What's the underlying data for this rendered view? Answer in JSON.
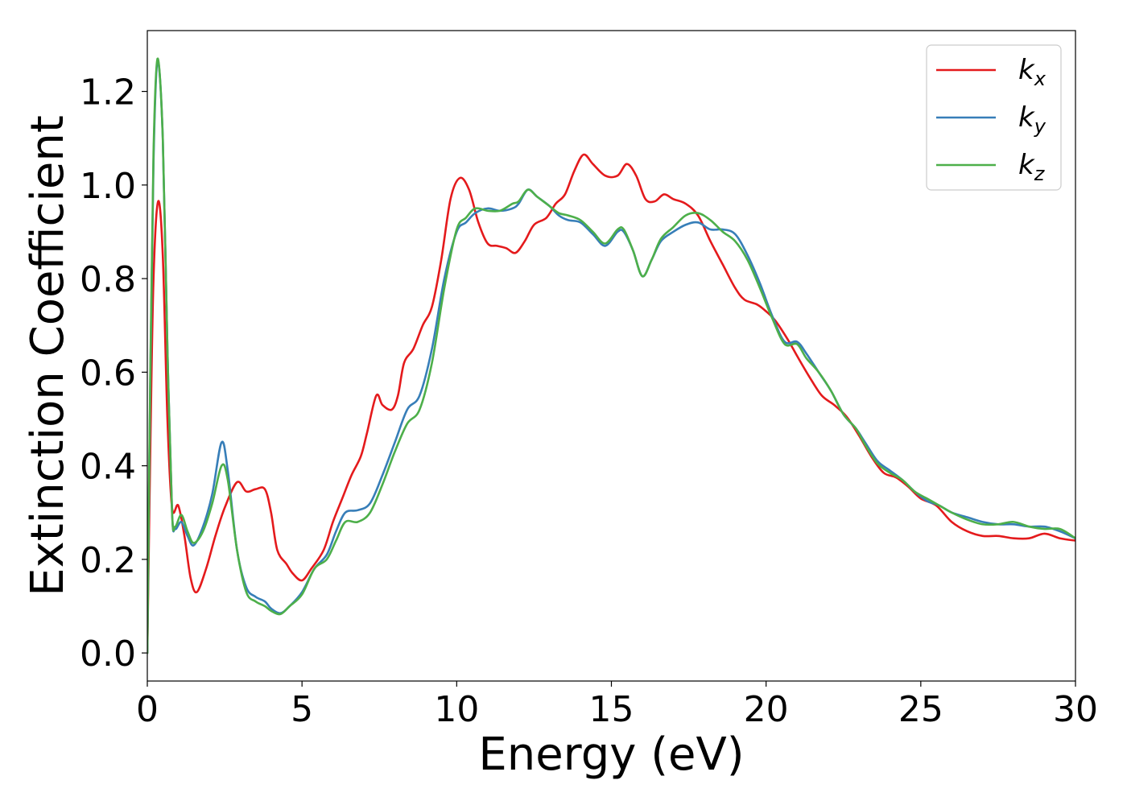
{
  "chart_data": {
    "type": "line",
    "title": "",
    "xlabel": "Energy (eV)",
    "ylabel": "Extinction Coefficient",
    "xlim": [
      0,
      30
    ],
    "ylim": [
      -0.06,
      1.33
    ],
    "xticks": [
      0,
      5,
      10,
      15,
      20,
      25,
      30
    ],
    "yticks": [
      0.0,
      0.2,
      0.4,
      0.6,
      0.8,
      1.0,
      1.2
    ],
    "grid": false,
    "legend_position": "top-right",
    "series": [
      {
        "name": "k",
        "subscript": "x",
        "color": "#e41a1c",
        "points": [
          [
            0,
            0.0
          ],
          [
            0.1,
            0.45
          ],
          [
            0.2,
            0.8
          ],
          [
            0.35,
            0.965
          ],
          [
            0.5,
            0.85
          ],
          [
            0.65,
            0.5
          ],
          [
            0.8,
            0.31
          ],
          [
            1.0,
            0.315
          ],
          [
            1.2,
            0.25
          ],
          [
            1.4,
            0.16
          ],
          [
            1.6,
            0.13
          ],
          [
            1.9,
            0.18
          ],
          [
            2.2,
            0.25
          ],
          [
            2.5,
            0.31
          ],
          [
            2.9,
            0.365
          ],
          [
            3.2,
            0.345
          ],
          [
            3.5,
            0.35
          ],
          [
            3.8,
            0.35
          ],
          [
            4.0,
            0.3
          ],
          [
            4.2,
            0.22
          ],
          [
            4.5,
            0.19
          ],
          [
            4.7,
            0.17
          ],
          [
            5.0,
            0.155
          ],
          [
            5.3,
            0.18
          ],
          [
            5.7,
            0.22
          ],
          [
            6.0,
            0.28
          ],
          [
            6.3,
            0.33
          ],
          [
            6.6,
            0.38
          ],
          [
            6.9,
            0.42
          ],
          [
            7.1,
            0.47
          ],
          [
            7.4,
            0.55
          ],
          [
            7.6,
            0.53
          ],
          [
            7.9,
            0.52
          ],
          [
            8.1,
            0.55
          ],
          [
            8.3,
            0.62
          ],
          [
            8.6,
            0.65
          ],
          [
            8.9,
            0.7
          ],
          [
            9.2,
            0.74
          ],
          [
            9.5,
            0.84
          ],
          [
            9.8,
            0.97
          ],
          [
            10.1,
            1.015
          ],
          [
            10.4,
            0.99
          ],
          [
            10.7,
            0.92
          ],
          [
            11.0,
            0.875
          ],
          [
            11.3,
            0.87
          ],
          [
            11.6,
            0.865
          ],
          [
            11.9,
            0.855
          ],
          [
            12.2,
            0.88
          ],
          [
            12.5,
            0.915
          ],
          [
            12.9,
            0.93
          ],
          [
            13.2,
            0.96
          ],
          [
            13.5,
            0.98
          ],
          [
            13.8,
            1.03
          ],
          [
            14.1,
            1.065
          ],
          [
            14.4,
            1.045
          ],
          [
            14.8,
            1.02
          ],
          [
            15.2,
            1.02
          ],
          [
            15.5,
            1.045
          ],
          [
            15.8,
            1.02
          ],
          [
            16.1,
            0.97
          ],
          [
            16.4,
            0.965
          ],
          [
            16.7,
            0.98
          ],
          [
            17.0,
            0.97
          ],
          [
            17.4,
            0.96
          ],
          [
            17.8,
            0.935
          ],
          [
            18.2,
            0.88
          ],
          [
            18.6,
            0.83
          ],
          [
            19.0,
            0.78
          ],
          [
            19.3,
            0.755
          ],
          [
            19.7,
            0.745
          ],
          [
            20.0,
            0.73
          ],
          [
            20.3,
            0.71
          ],
          [
            20.7,
            0.67
          ],
          [
            21.0,
            0.635
          ],
          [
            21.4,
            0.59
          ],
          [
            21.8,
            0.55
          ],
          [
            22.2,
            0.53
          ],
          [
            22.6,
            0.505
          ],
          [
            23.0,
            0.465
          ],
          [
            23.4,
            0.42
          ],
          [
            23.8,
            0.385
          ],
          [
            24.2,
            0.375
          ],
          [
            24.6,
            0.355
          ],
          [
            25.0,
            0.33
          ],
          [
            25.5,
            0.315
          ],
          [
            26.0,
            0.28
          ],
          [
            26.5,
            0.26
          ],
          [
            27.0,
            0.25
          ],
          [
            27.5,
            0.25
          ],
          [
            28.0,
            0.245
          ],
          [
            28.5,
            0.245
          ],
          [
            29.0,
            0.255
          ],
          [
            29.5,
            0.245
          ],
          [
            30.0,
            0.24
          ]
        ]
      },
      {
        "name": "k",
        "subscript": "y",
        "color": "#377eb8",
        "points": [
          [
            0,
            0.0
          ],
          [
            0.1,
            0.6
          ],
          [
            0.2,
            1.05
          ],
          [
            0.33,
            1.265
          ],
          [
            0.5,
            1.1
          ],
          [
            0.65,
            0.65
          ],
          [
            0.8,
            0.3
          ],
          [
            0.9,
            0.265
          ],
          [
            1.1,
            0.28
          ],
          [
            1.3,
            0.25
          ],
          [
            1.5,
            0.23
          ],
          [
            1.8,
            0.27
          ],
          [
            2.1,
            0.34
          ],
          [
            2.4,
            0.45
          ],
          [
            2.6,
            0.39
          ],
          [
            2.9,
            0.22
          ],
          [
            3.2,
            0.14
          ],
          [
            3.5,
            0.12
          ],
          [
            3.8,
            0.11
          ],
          [
            4.0,
            0.095
          ],
          [
            4.3,
            0.085
          ],
          [
            4.6,
            0.1
          ],
          [
            5.0,
            0.13
          ],
          [
            5.4,
            0.18
          ],
          [
            5.8,
            0.21
          ],
          [
            6.1,
            0.26
          ],
          [
            6.4,
            0.3
          ],
          [
            6.8,
            0.305
          ],
          [
            7.2,
            0.32
          ],
          [
            7.6,
            0.38
          ],
          [
            8.0,
            0.45
          ],
          [
            8.4,
            0.52
          ],
          [
            8.8,
            0.55
          ],
          [
            9.2,
            0.65
          ],
          [
            9.6,
            0.8
          ],
          [
            10.0,
            0.9
          ],
          [
            10.3,
            0.92
          ],
          [
            10.6,
            0.94
          ],
          [
            11.0,
            0.95
          ],
          [
            11.4,
            0.945
          ],
          [
            11.8,
            0.95
          ],
          [
            12.0,
            0.96
          ],
          [
            12.3,
            0.99
          ],
          [
            12.6,
            0.975
          ],
          [
            13.0,
            0.955
          ],
          [
            13.3,
            0.935
          ],
          [
            13.6,
            0.925
          ],
          [
            14.0,
            0.92
          ],
          [
            14.4,
            0.895
          ],
          [
            14.8,
            0.87
          ],
          [
            15.2,
            0.9
          ],
          [
            15.4,
            0.9
          ],
          [
            15.7,
            0.86
          ],
          [
            16.0,
            0.805
          ],
          [
            16.3,
            0.84
          ],
          [
            16.6,
            0.88
          ],
          [
            17.0,
            0.9
          ],
          [
            17.4,
            0.915
          ],
          [
            17.8,
            0.92
          ],
          [
            18.2,
            0.905
          ],
          [
            18.6,
            0.905
          ],
          [
            19.0,
            0.895
          ],
          [
            19.4,
            0.85
          ],
          [
            19.8,
            0.79
          ],
          [
            20.2,
            0.72
          ],
          [
            20.6,
            0.665
          ],
          [
            21.0,
            0.665
          ],
          [
            21.3,
            0.64
          ],
          [
            21.7,
            0.6
          ],
          [
            22.1,
            0.56
          ],
          [
            22.5,
            0.51
          ],
          [
            22.9,
            0.48
          ],
          [
            23.2,
            0.45
          ],
          [
            23.6,
            0.41
          ],
          [
            24.0,
            0.39
          ],
          [
            24.4,
            0.37
          ],
          [
            24.8,
            0.345
          ],
          [
            25.2,
            0.325
          ],
          [
            25.6,
            0.315
          ],
          [
            26.0,
            0.3
          ],
          [
            26.5,
            0.29
          ],
          [
            27.0,
            0.28
          ],
          [
            27.5,
            0.275
          ],
          [
            28.0,
            0.275
          ],
          [
            28.5,
            0.27
          ],
          [
            29.0,
            0.27
          ],
          [
            29.5,
            0.26
          ],
          [
            30.0,
            0.245
          ]
        ]
      },
      {
        "name": "k",
        "subscript": "z",
        "color": "#4daf4a",
        "points": [
          [
            0,
            0.0
          ],
          [
            0.1,
            0.62
          ],
          [
            0.2,
            1.07
          ],
          [
            0.33,
            1.27
          ],
          [
            0.5,
            1.1
          ],
          [
            0.65,
            0.65
          ],
          [
            0.8,
            0.3
          ],
          [
            0.9,
            0.27
          ],
          [
            1.1,
            0.295
          ],
          [
            1.3,
            0.26
          ],
          [
            1.5,
            0.235
          ],
          [
            1.8,
            0.26
          ],
          [
            2.1,
            0.32
          ],
          [
            2.4,
            0.4
          ],
          [
            2.6,
            0.37
          ],
          [
            2.9,
            0.22
          ],
          [
            3.2,
            0.13
          ],
          [
            3.5,
            0.11
          ],
          [
            3.8,
            0.1
          ],
          [
            4.0,
            0.09
          ],
          [
            4.3,
            0.083
          ],
          [
            4.6,
            0.1
          ],
          [
            5.0,
            0.125
          ],
          [
            5.4,
            0.18
          ],
          [
            5.8,
            0.2
          ],
          [
            6.1,
            0.24
          ],
          [
            6.4,
            0.28
          ],
          [
            6.8,
            0.28
          ],
          [
            7.2,
            0.3
          ],
          [
            7.6,
            0.36
          ],
          [
            8.0,
            0.43
          ],
          [
            8.4,
            0.49
          ],
          [
            8.8,
            0.52
          ],
          [
            9.2,
            0.62
          ],
          [
            9.6,
            0.78
          ],
          [
            10.0,
            0.905
          ],
          [
            10.3,
            0.93
          ],
          [
            10.6,
            0.95
          ],
          [
            11.0,
            0.945
          ],
          [
            11.4,
            0.945
          ],
          [
            11.8,
            0.96
          ],
          [
            12.0,
            0.965
          ],
          [
            12.3,
            0.99
          ],
          [
            12.6,
            0.975
          ],
          [
            13.0,
            0.955
          ],
          [
            13.3,
            0.94
          ],
          [
            13.6,
            0.935
          ],
          [
            14.0,
            0.925
          ],
          [
            14.4,
            0.9
          ],
          [
            14.8,
            0.875
          ],
          [
            15.2,
            0.905
          ],
          [
            15.4,
            0.905
          ],
          [
            15.7,
            0.86
          ],
          [
            16.0,
            0.805
          ],
          [
            16.3,
            0.84
          ],
          [
            16.6,
            0.885
          ],
          [
            17.0,
            0.91
          ],
          [
            17.4,
            0.935
          ],
          [
            17.8,
            0.94
          ],
          [
            18.2,
            0.925
          ],
          [
            18.6,
            0.9
          ],
          [
            19.0,
            0.88
          ],
          [
            19.4,
            0.84
          ],
          [
            19.8,
            0.78
          ],
          [
            20.2,
            0.715
          ],
          [
            20.6,
            0.66
          ],
          [
            21.0,
            0.66
          ],
          [
            21.3,
            0.63
          ],
          [
            21.7,
            0.6
          ],
          [
            22.1,
            0.56
          ],
          [
            22.5,
            0.51
          ],
          [
            22.9,
            0.48
          ],
          [
            23.2,
            0.445
          ],
          [
            23.6,
            0.405
          ],
          [
            24.0,
            0.385
          ],
          [
            24.4,
            0.37
          ],
          [
            24.8,
            0.345
          ],
          [
            25.2,
            0.33
          ],
          [
            25.6,
            0.315
          ],
          [
            26.0,
            0.3
          ],
          [
            26.5,
            0.285
          ],
          [
            27.0,
            0.275
          ],
          [
            27.5,
            0.275
          ],
          [
            28.0,
            0.28
          ],
          [
            28.5,
            0.27
          ],
          [
            29.0,
            0.265
          ],
          [
            29.5,
            0.265
          ],
          [
            30.0,
            0.245
          ]
        ]
      }
    ]
  }
}
